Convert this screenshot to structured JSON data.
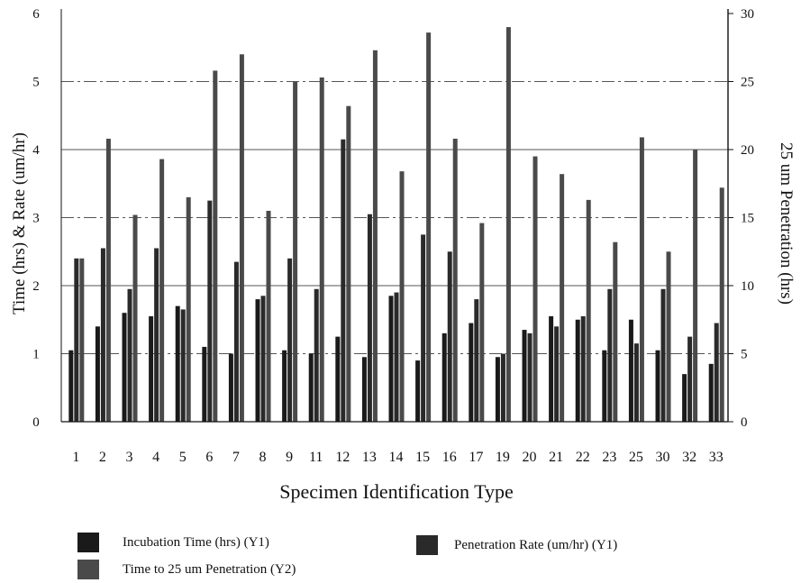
{
  "chart_data": {
    "type": "bar",
    "xlabel": "Specimen Identification Type",
    "ylabel_left": "Time (hrs) & Rate (um/hr)",
    "ylabel_right": "25 um Penetration (hrs)",
    "y_left": {
      "min": 0,
      "max": 6,
      "ticks": [
        "0",
        "1",
        "2",
        "3",
        "4",
        "5",
        "6"
      ]
    },
    "y_right": {
      "min": 0,
      "max": 30,
      "ticks": [
        "0",
        "5",
        "10",
        "15",
        "20",
        "25",
        "30"
      ]
    },
    "categories": [
      "1",
      "2",
      "3",
      "4",
      "5",
      "6",
      "7",
      "8",
      "9",
      "11",
      "12",
      "13",
      "14",
      "15",
      "16",
      "17",
      "19",
      "20",
      "21",
      "22",
      "23",
      "25",
      "30",
      "32",
      "33"
    ],
    "grid": true,
    "legend": "bottom",
    "series": [
      {
        "name": "Incubation Time (hrs) (Y1)",
        "axis": "left",
        "color": "#1a1a1a",
        "values": [
          1.05,
          1.4,
          1.6,
          1.55,
          1.7,
          1.1,
          1.0,
          1.8,
          1.05,
          1.0,
          1.25,
          0.95,
          1.85,
          0.9,
          1.3,
          1.45,
          0.95,
          1.35,
          1.55,
          1.5,
          1.05,
          1.5,
          1.05,
          0.7,
          0.85
        ]
      },
      {
        "name": "Penetration Rate (um/hr) (Y1)",
        "axis": "left",
        "color": "#2a2a2a",
        "values": [
          2.4,
          2.55,
          1.95,
          2.55,
          1.65,
          3.25,
          2.35,
          1.85,
          2.4,
          1.95,
          4.15,
          3.05,
          1.9,
          2.75,
          2.5,
          1.8,
          1.0,
          1.3,
          1.4,
          1.55,
          1.95,
          1.15,
          1.95,
          1.25,
          1.45
        ]
      },
      {
        "name": "Time to 25 um Penetration (Y2)",
        "axis": "right",
        "color": "#4a4a4a",
        "values": [
          12.0,
          20.8,
          15.2,
          19.3,
          16.5,
          25.8,
          27.0,
          15.5,
          25.0,
          25.3,
          23.2,
          27.3,
          18.4,
          28.6,
          20.8,
          14.6,
          29.0,
          19.5,
          18.2,
          16.3,
          13.2,
          20.9,
          12.5,
          20.0,
          17.2
        ]
      }
    ]
  }
}
